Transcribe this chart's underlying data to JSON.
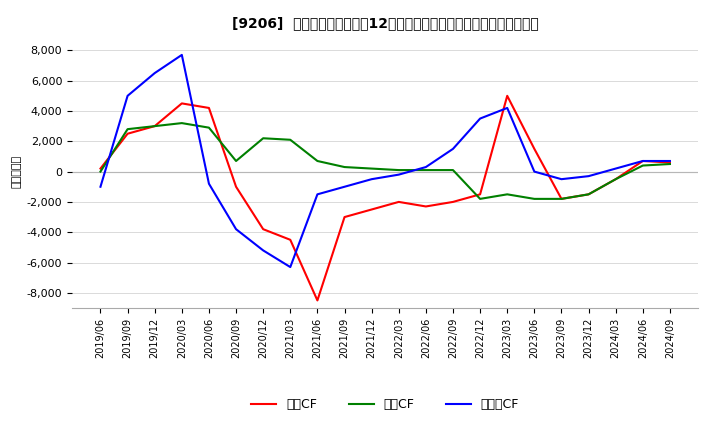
{
  "title": "[9206]  キャッシュフローの12か月移動合計の対前年同期増減額の推移",
  "ylabel": "（百万円）",
  "ylim": [
    -9000,
    9000
  ],
  "yticks": [
    -8000,
    -6000,
    -4000,
    -2000,
    0,
    2000,
    4000,
    6000,
    8000
  ],
  "x_labels": [
    "2019/06",
    "2019/09",
    "2019/12",
    "2020/03",
    "2020/06",
    "2020/09",
    "2020/12",
    "2021/03",
    "2021/06",
    "2021/09",
    "2021/12",
    "2022/03",
    "2022/06",
    "2022/09",
    "2022/12",
    "2023/03",
    "2023/06",
    "2023/09",
    "2023/12",
    "2024/03",
    "2024/06",
    "2024/09"
  ],
  "operating_cf": [
    200,
    2500,
    3000,
    4500,
    4200,
    -1000,
    -3800,
    -4500,
    -8500,
    -3000,
    -2500,
    -2000,
    -2300,
    -2000,
    -1500,
    5000,
    1500,
    -1800,
    -1500,
    -500,
    700,
    600
  ],
  "investing_cf": [
    0,
    2800,
    3000,
    3200,
    2900,
    700,
    2200,
    2100,
    700,
    300,
    200,
    100,
    100,
    100,
    -1800,
    -1500,
    -1800,
    -1800,
    -1500,
    -500,
    400,
    500
  ],
  "free_cf": [
    -1000,
    5000,
    6500,
    7700,
    -800,
    -3800,
    -5200,
    -6300,
    -1500,
    -1000,
    -500,
    -200,
    300,
    1500,
    3500,
    4200,
    0,
    -500,
    -300,
    200,
    700,
    700
  ],
  "operating_color": "#ff0000",
  "investing_color": "#008000",
  "free_color": "#0000ff",
  "legend_labels": [
    "営業CF",
    "投資CF",
    "フリーCF"
  ],
  "bg_color": "#ffffff",
  "grid_color": "#cccccc"
}
